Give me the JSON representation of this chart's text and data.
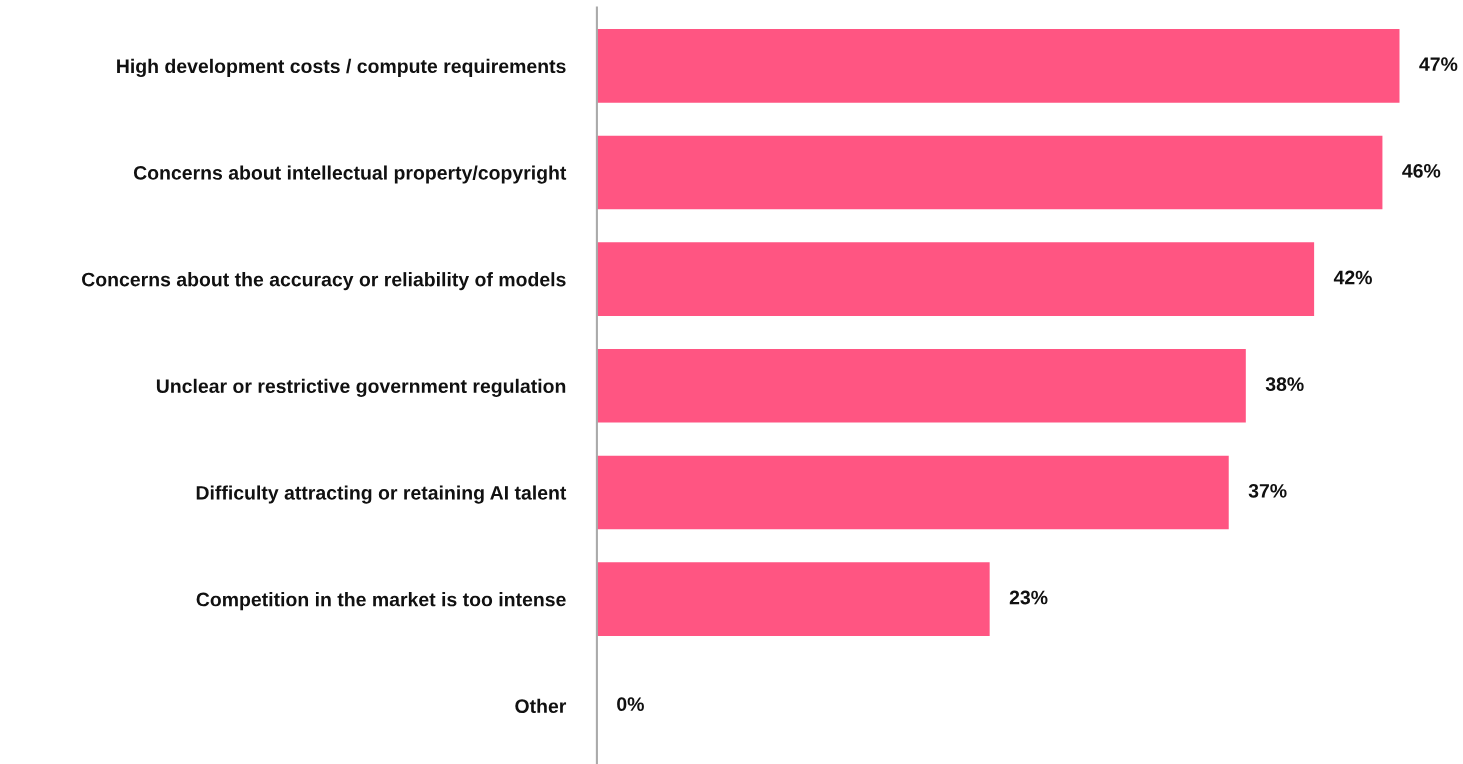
{
  "chart_data": {
    "type": "bar",
    "orientation": "horizontal",
    "categories": [
      "High development costs / compute requirements",
      "Concerns about intellectual property/copyright",
      "Concerns about the accuracy or reliability of models",
      "Unclear or restrictive government regulation",
      "Difficulty attracting or retaining AI talent",
      "Competition in the market is too intense",
      "Other"
    ],
    "values": [
      47,
      46,
      42,
      38,
      37,
      23,
      0
    ],
    "value_labels": [
      "47%",
      "46%",
      "42%",
      "38%",
      "37%",
      "23%",
      "0%"
    ],
    "color": "#ff5582",
    "grid": false,
    "legend": false,
    "tick_labels": "y"
  }
}
